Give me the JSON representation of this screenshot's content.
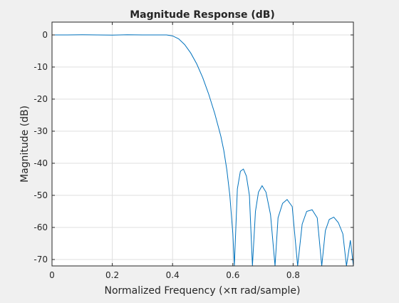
{
  "chart_data": {
    "type": "line",
    "title": "Magnitude Response (dB)",
    "xlabel": "Normalized Frequency (×π rad/sample)",
    "ylabel": "Magnitude (dB)",
    "xlim": [
      0,
      1
    ],
    "ylim": [
      -72,
      4
    ],
    "grid": true,
    "x_ticks": [
      0,
      0.2,
      0.4,
      0.6,
      0.8
    ],
    "x_tick_labels": [
      "0",
      "0.2",
      "0.4",
      "0.6",
      "0.8"
    ],
    "y_ticks": [
      0,
      -10,
      -20,
      -30,
      -40,
      -50,
      -60,
      -70
    ],
    "y_tick_labels": [
      "0",
      "-10",
      "-20",
      "-30",
      "-40",
      "-50",
      "-60",
      "-70"
    ],
    "series": [
      {
        "color": "#0072bd",
        "x": [
          0,
          0.05,
          0.1,
          0.15,
          0.2,
          0.25,
          0.3,
          0.35,
          0.38,
          0.4,
          0.42,
          0.44,
          0.46,
          0.48,
          0.5,
          0.52,
          0.54,
          0.56,
          0.57,
          0.58,
          0.59,
          0.6,
          0.605,
          0.61,
          0.615,
          0.625,
          0.635,
          0.645,
          0.655,
          0.665,
          0.675,
          0.685,
          0.697,
          0.71,
          0.725,
          0.74,
          0.75,
          0.765,
          0.78,
          0.797,
          0.815,
          0.83,
          0.845,
          0.863,
          0.88,
          0.895,
          0.907,
          0.92,
          0.935,
          0.95,
          0.965,
          0.977,
          0.99,
          1.0
        ],
        "y": [
          0,
          0,
          0.05,
          0,
          -0.05,
          0.05,
          0,
          0,
          0,
          -0.3,
          -1.2,
          -3,
          -5.6,
          -9,
          -13.3,
          -18.5,
          -24.5,
          -31.5,
          -36,
          -42,
          -50,
          -62,
          -72,
          -60,
          -48,
          -42.5,
          -41.8,
          -44,
          -50,
          -72,
          -55,
          -49,
          -47,
          -49,
          -56,
          -72,
          -57,
          -52.5,
          -51.3,
          -53.5,
          -72,
          -59,
          -55,
          -54.5,
          -57,
          -72,
          -61,
          -57.5,
          -56.8,
          -58.5,
          -62,
          -72,
          -64,
          -72
        ]
      }
    ]
  }
}
